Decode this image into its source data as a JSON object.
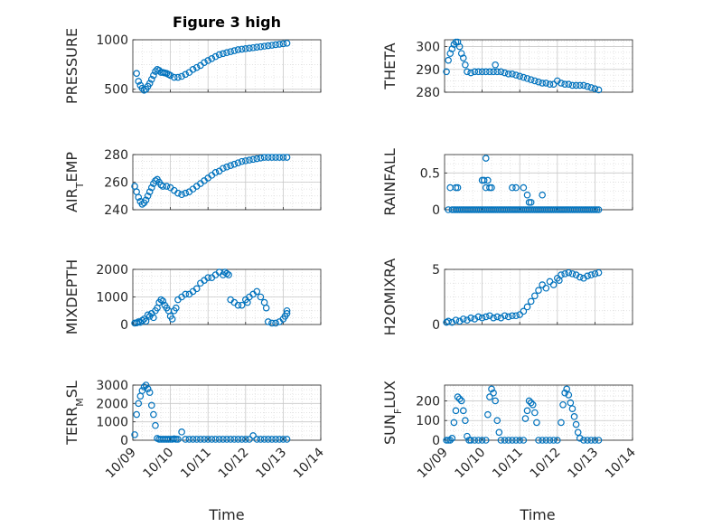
{
  "figure": {
    "title": "Figure 3 high",
    "marker_color": "#0072BD",
    "x_tick_labels": [
      "10/09",
      "10/10",
      "10/11",
      "10/12",
      "10/13",
      "10/14"
    ],
    "x_label": "Time"
  },
  "chart_data": [
    {
      "type": "scatter",
      "ylabel": "PRESSURE",
      "ylim": [
        470,
        1000
      ],
      "yticks": [
        500,
        1000
      ],
      "grid": true,
      "xlim": [
        "10/09",
        "10/14"
      ],
      "x": [
        0.1,
        0.15,
        0.2,
        0.25,
        0.3,
        0.35,
        0.4,
        0.45,
        0.5,
        0.55,
        0.6,
        0.65,
        0.7,
        0.75,
        0.8,
        0.85,
        0.9,
        0.95,
        1.0,
        1.1,
        1.2,
        1.3,
        1.4,
        1.5,
        1.6,
        1.7,
        1.8,
        1.9,
        2.0,
        2.1,
        2.2,
        2.3,
        2.4,
        2.5,
        2.6,
        2.7,
        2.8,
        2.9,
        3.0,
        3.1,
        3.2,
        3.3,
        3.4,
        3.5,
        3.6,
        3.7,
        3.8,
        3.9,
        4.0,
        4.1
      ],
      "y": [
        660,
        580,
        540,
        510,
        490,
        500,
        530,
        560,
        600,
        640,
        680,
        700,
        690,
        670,
        670,
        665,
        660,
        650,
        640,
        620,
        620,
        630,
        650,
        670,
        700,
        720,
        740,
        770,
        790,
        810,
        830,
        850,
        860,
        870,
        880,
        890,
        900,
        905,
        910,
        915,
        920,
        925,
        930,
        935,
        940,
        945,
        950,
        955,
        960,
        965
      ]
    },
    {
      "type": "scatter",
      "ylabel": "THETA",
      "ylim": [
        280,
        303
      ],
      "yticks": [
        280,
        290,
        300
      ],
      "grid": true,
      "xlim": [
        "10/09",
        "10/14"
      ],
      "x": [
        0.05,
        0.1,
        0.15,
        0.2,
        0.25,
        0.3,
        0.35,
        0.4,
        0.45,
        0.5,
        0.55,
        0.6,
        0.7,
        0.8,
        0.9,
        1.0,
        1.1,
        1.2,
        1.3,
        1.35,
        1.4,
        1.5,
        1.6,
        1.7,
        1.8,
        1.9,
        2.0,
        2.1,
        2.2,
        2.3,
        2.4,
        2.5,
        2.6,
        2.7,
        2.8,
        2.9,
        3.0,
        3.1,
        3.2,
        3.3,
        3.4,
        3.5,
        3.6,
        3.7,
        3.8,
        3.9,
        4.0,
        4.1
      ],
      "y": [
        289,
        294,
        297,
        299,
        301,
        302,
        302,
        300,
        297,
        295,
        292,
        289,
        288.5,
        289,
        289,
        289,
        289,
        289,
        289,
        292,
        289,
        289,
        288.5,
        288,
        288,
        287.5,
        287,
        286.5,
        286,
        285.5,
        285,
        284.5,
        284,
        284,
        283.5,
        283.5,
        285,
        284,
        283.5,
        283.5,
        283,
        283,
        283,
        283,
        282.5,
        282,
        281.5,
        281
      ]
    },
    {
      "type": "scatter",
      "ylabel": "AIR_T_EMP",
      "ylim": [
        240,
        280
      ],
      "yticks": [
        240,
        260,
        280
      ],
      "grid": true,
      "xlim": [
        "10/09",
        "10/14"
      ],
      "x": [
        0.05,
        0.1,
        0.15,
        0.2,
        0.25,
        0.3,
        0.35,
        0.4,
        0.45,
        0.5,
        0.55,
        0.6,
        0.65,
        0.7,
        0.75,
        0.8,
        0.9,
        1.0,
        1.1,
        1.2,
        1.3,
        1.4,
        1.5,
        1.6,
        1.7,
        1.8,
        1.9,
        2.0,
        2.1,
        2.2,
        2.3,
        2.4,
        2.5,
        2.6,
        2.7,
        2.8,
        2.9,
        3.0,
        3.1,
        3.2,
        3.3,
        3.4,
        3.5,
        3.6,
        3.7,
        3.8,
        3.9,
        4.0,
        4.1
      ],
      "y": [
        257,
        253,
        249,
        246,
        244,
        245,
        247,
        250,
        253,
        256,
        259,
        261,
        262,
        260,
        258,
        257,
        257,
        256,
        254,
        252,
        251,
        252,
        253,
        255,
        257,
        259,
        261,
        263,
        265,
        267,
        268,
        270,
        271,
        272,
        273,
        274,
        275,
        275.5,
        276,
        276.5,
        277,
        277.5,
        278,
        278,
        278,
        278,
        278,
        278,
        278
      ]
    },
    {
      "type": "scatter",
      "ylabel": "RAINFALL",
      "ylim": [
        0,
        0.75
      ],
      "yticks": [
        0,
        0.5
      ],
      "grid": true,
      "xlim": [
        "10/09",
        "10/14"
      ],
      "x": [
        0.1,
        0.2,
        0.25,
        0.3,
        0.35,
        0.4,
        0.45,
        0.5,
        0.55,
        0.6,
        0.65,
        0.7,
        0.75,
        0.8,
        0.85,
        0.9,
        0.95,
        1.0,
        1.05,
        1.1,
        1.15,
        1.2,
        1.25,
        1.3,
        1.35,
        1.4,
        1.45,
        1.5,
        1.55,
        1.6,
        1.65,
        1.7,
        1.75,
        1.8,
        1.85,
        1.9,
        1.95,
        2.0,
        2.05,
        2.1,
        2.15,
        2.2,
        2.25,
        2.3,
        2.35,
        2.4,
        2.45,
        2.5,
        2.55,
        2.6,
        2.65,
        2.7,
        2.75,
        2.8,
        2.85,
        2.9,
        2.95,
        3.0,
        3.05,
        3.1,
        3.15,
        3.2,
        3.25,
        3.3,
        3.35,
        3.4,
        3.45,
        3.5,
        3.55,
        3.6,
        3.65,
        3.7,
        3.75,
        3.8,
        3.85,
        3.9,
        3.95,
        4.0,
        4.05,
        4.1,
        0.15,
        0.3,
        0.35,
        1.0,
        1.05,
        1.1,
        1.15,
        1.1,
        1.2,
        1.25,
        1.8,
        1.9,
        2.1,
        2.2,
        2.25,
        2.3,
        2.6
      ],
      "y": [
        0,
        0,
        0,
        0,
        0,
        0,
        0,
        0,
        0,
        0,
        0,
        0,
        0,
        0,
        0,
        0,
        0,
        0,
        0,
        0,
        0,
        0,
        0,
        0,
        0,
        0,
        0,
        0,
        0,
        0,
        0,
        0,
        0,
        0,
        0,
        0,
        0,
        0,
        0,
        0,
        0,
        0,
        0,
        0,
        0,
        0,
        0,
        0,
        0,
        0,
        0,
        0,
        0,
        0,
        0,
        0,
        0,
        0,
        0,
        0,
        0,
        0,
        0,
        0,
        0,
        0,
        0,
        0,
        0,
        0,
        0,
        0,
        0,
        0,
        0,
        0,
        0,
        0,
        0,
        0,
        0.3,
        0.3,
        0.3,
        0.4,
        0.4,
        0.7,
        0.4,
        0.3,
        0.3,
        0.3,
        0.3,
        0.3,
        0.3,
        0.2,
        0.1,
        0.1,
        0.2
      ]
    },
    {
      "type": "scatter",
      "ylabel": "MIXDEPTH",
      "ylim": [
        0,
        2000
      ],
      "yticks": [
        0,
        1000,
        2000
      ],
      "grid": true,
      "xlim": [
        "10/09",
        "10/14"
      ],
      "x": [
        0.05,
        0.1,
        0.15,
        0.2,
        0.25,
        0.3,
        0.35,
        0.4,
        0.45,
        0.5,
        0.55,
        0.6,
        0.65,
        0.7,
        0.75,
        0.8,
        0.85,
        0.9,
        0.95,
        1.0,
        1.05,
        1.1,
        1.15,
        1.2,
        1.3,
        1.4,
        1.5,
        1.6,
        1.7,
        1.8,
        1.9,
        2.0,
        2.1,
        2.2,
        2.3,
        2.4,
        2.45,
        2.5,
        2.55,
        2.6,
        2.7,
        2.8,
        2.9,
        3.0,
        3.05,
        3.1,
        3.2,
        3.3,
        3.4,
        3.5,
        3.55,
        3.6,
        3.7,
        3.8,
        3.9,
        4.0,
        4.05,
        4.1,
        4.1
      ],
      "y": [
        50,
        60,
        100,
        80,
        150,
        200,
        120,
        350,
        300,
        400,
        250,
        500,
        600,
        800,
        900,
        850,
        700,
        600,
        500,
        300,
        200,
        500,
        600,
        900,
        1000,
        1100,
        1100,
        1200,
        1300,
        1500,
        1600,
        1700,
        1700,
        1800,
        1900,
        1800,
        1900,
        1850,
        1800,
        900,
        800,
        700,
        700,
        900,
        800,
        1000,
        1100,
        1200,
        1000,
        800,
        600,
        100,
        50,
        50,
        100,
        200,
        300,
        400,
        500
      ]
    },
    {
      "type": "scatter",
      "ylabel": "H2OMIXRA",
      "ylim": [
        0,
        5
      ],
      "yticks": [
        0,
        5
      ],
      "grid": true,
      "xlim": [
        "10/09",
        "10/14"
      ],
      "x": [
        0.05,
        0.1,
        0.2,
        0.3,
        0.4,
        0.5,
        0.6,
        0.7,
        0.8,
        0.9,
        1.0,
        1.1,
        1.2,
        1.3,
        1.4,
        1.5,
        1.6,
        1.7,
        1.8,
        1.9,
        2.0,
        2.1,
        2.2,
        2.3,
        2.4,
        2.5,
        2.6,
        2.7,
        2.8,
        2.9,
        3.0,
        3.05,
        3.1,
        3.2,
        3.3,
        3.4,
        3.5,
        3.6,
        3.7,
        3.8,
        3.9,
        4.0,
        4.1
      ],
      "y": [
        0.2,
        0.3,
        0.2,
        0.4,
        0.3,
        0.5,
        0.4,
        0.6,
        0.5,
        0.7,
        0.6,
        0.7,
        0.8,
        0.6,
        0.7,
        0.6,
        0.8,
        0.7,
        0.8,
        0.8,
        0.9,
        1.2,
        1.6,
        2.1,
        2.6,
        3.1,
        3.6,
        3.3,
        3.9,
        3.6,
        4.2,
        4.0,
        4.5,
        4.6,
        4.7,
        4.6,
        4.5,
        4.3,
        4.2,
        4.4,
        4.5,
        4.6,
        4.7
      ]
    },
    {
      "type": "scatter",
      "ylabel": "TERR_M_SL",
      "ylim": [
        0,
        3000
      ],
      "yticks": [
        0,
        1000,
        2000,
        3000
      ],
      "grid": true,
      "xlim": [
        "10/09",
        "10/14"
      ],
      "x": [
        0.05,
        0.1,
        0.15,
        0.2,
        0.25,
        0.3,
        0.35,
        0.4,
        0.45,
        0.5,
        0.55,
        0.6,
        0.65,
        0.7,
        0.75,
        0.8,
        0.85,
        0.9,
        0.95,
        1.0,
        1.05,
        1.1,
        1.15,
        1.2,
        1.3,
        1.4,
        1.5,
        1.6,
        1.7,
        1.8,
        1.9,
        2.0,
        2.1,
        2.2,
        2.3,
        2.4,
        2.5,
        2.6,
        2.7,
        2.8,
        2.9,
        3.0,
        3.1,
        3.2,
        3.3,
        3.4,
        3.5,
        3.6,
        3.7,
        3.8,
        3.9,
        4.0,
        4.1
      ],
      "y": [
        300,
        1400,
        2000,
        2400,
        2700,
        2900,
        3000,
        2800,
        2600,
        1900,
        1400,
        800,
        100,
        50,
        50,
        50,
        50,
        50,
        50,
        50,
        50,
        80,
        50,
        50,
        450,
        50,
        50,
        50,
        50,
        50,
        50,
        50,
        50,
        50,
        50,
        50,
        50,
        50,
        50,
        50,
        50,
        50,
        50,
        250,
        50,
        50,
        50,
        50,
        50,
        50,
        50,
        50,
        50
      ]
    },
    {
      "type": "scatter",
      "ylabel": "SUN_F_LUX",
      "ylim": [
        0,
        280
      ],
      "yticks": [
        0,
        100,
        200
      ],
      "grid": true,
      "xlim": [
        "10/09",
        "10/14"
      ],
      "x": [
        0.05,
        0.1,
        0.15,
        0.2,
        0.25,
        0.3,
        0.35,
        0.4,
        0.45,
        0.5,
        0.55,
        0.6,
        0.65,
        0.7,
        0.8,
        0.9,
        1.0,
        1.1,
        1.15,
        1.2,
        1.25,
        1.3,
        1.35,
        1.4,
        1.45,
        1.5,
        1.6,
        1.7,
        1.8,
        1.9,
        2.0,
        2.1,
        2.15,
        2.2,
        2.25,
        2.3,
        2.35,
        2.4,
        2.45,
        2.5,
        2.6,
        2.7,
        2.8,
        2.9,
        3.0,
        3.1,
        3.15,
        3.2,
        3.25,
        3.3,
        3.35,
        3.4,
        3.45,
        3.5,
        3.55,
        3.6,
        3.7,
        3.8,
        3.9,
        4.0,
        4.1
      ],
      "y": [
        0,
        0,
        0,
        10,
        90,
        150,
        220,
        210,
        200,
        150,
        100,
        20,
        0,
        0,
        0,
        0,
        0,
        0,
        130,
        220,
        260,
        240,
        200,
        100,
        40,
        0,
        0,
        0,
        0,
        0,
        0,
        0,
        110,
        150,
        200,
        190,
        180,
        140,
        90,
        0,
        0,
        0,
        0,
        0,
        0,
        90,
        180,
        240,
        260,
        230,
        190,
        160,
        120,
        80,
        40,
        10,
        0,
        0,
        0,
        0,
        0
      ]
    }
  ]
}
